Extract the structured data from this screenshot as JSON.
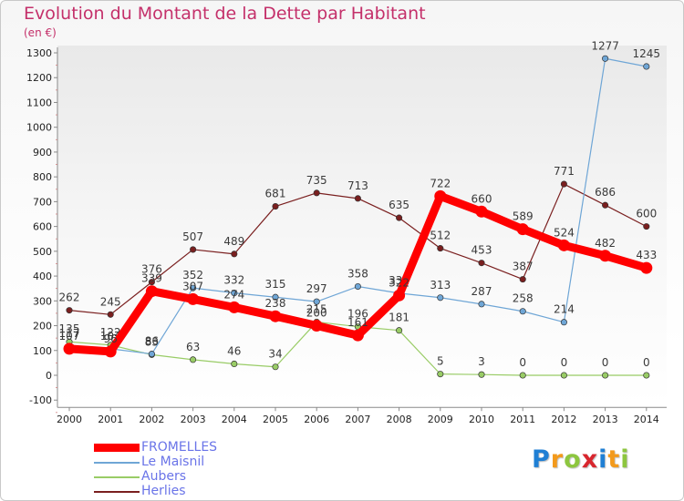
{
  "title": "Evolution du Montant de la Dette par Habitant",
  "subtitle": "(en €)",
  "logo": {
    "letters": [
      "P",
      "r",
      "o",
      "x",
      "i",
      "t",
      "i"
    ],
    "colors": [
      "#1f7fd4",
      "#f39a1c",
      "#8dc63f",
      "#d8262e",
      "#1f7fd4",
      "#f39a1c",
      "#8dc63f"
    ]
  },
  "chart_data": {
    "type": "line",
    "x": [
      "2000",
      "2001",
      "2002",
      "2003",
      "2004",
      "2005",
      "2006",
      "2007",
      "2008",
      "2009",
      "2010",
      "2011",
      "2012",
      "2013",
      "2014"
    ],
    "ylim": [
      -100,
      1300
    ],
    "yticks": [
      -100,
      0,
      100,
      200,
      300,
      400,
      500,
      600,
      700,
      800,
      900,
      1000,
      1100,
      1200,
      1300
    ],
    "grid": false,
    "legend_position": "bottom-left",
    "series": [
      {
        "name": "Herlies",
        "color": "#7a1f1f",
        "width": 1.2,
        "marker": 3.2,
        "values": [
          262,
          245,
          376,
          507,
          489,
          681,
          735,
          713,
          635,
          512,
          453,
          387,
          771,
          686,
          600
        ]
      },
      {
        "name": "Aubers",
        "color": "#99cc66",
        "width": 1.2,
        "marker": 3.2,
        "values": [
          135,
          122,
          83,
          63,
          46,
          34,
          215,
          196,
          181,
          5,
          3,
          0,
          0,
          0,
          0
        ]
      },
      {
        "name": "Le Maisnil",
        "color": "#6fa6d6",
        "width": 1.2,
        "marker": 3.2,
        "values": [
          117,
          107,
          86,
          352,
          332,
          315,
          297,
          358,
          331,
          313,
          287,
          258,
          214,
          1277,
          1245
        ]
      },
      {
        "name": "FROMELLES",
        "color": "#ff0000",
        "width": 9,
        "marker": 6.5,
        "values": [
          107,
          96,
          339,
          307,
          274,
          238,
          200,
          161,
          322,
          722,
          660,
          589,
          524,
          482,
          433
        ]
      }
    ],
    "legend": [
      "FROMELLES",
      "Le Maisnil",
      "Aubers",
      "Herlies"
    ]
  }
}
